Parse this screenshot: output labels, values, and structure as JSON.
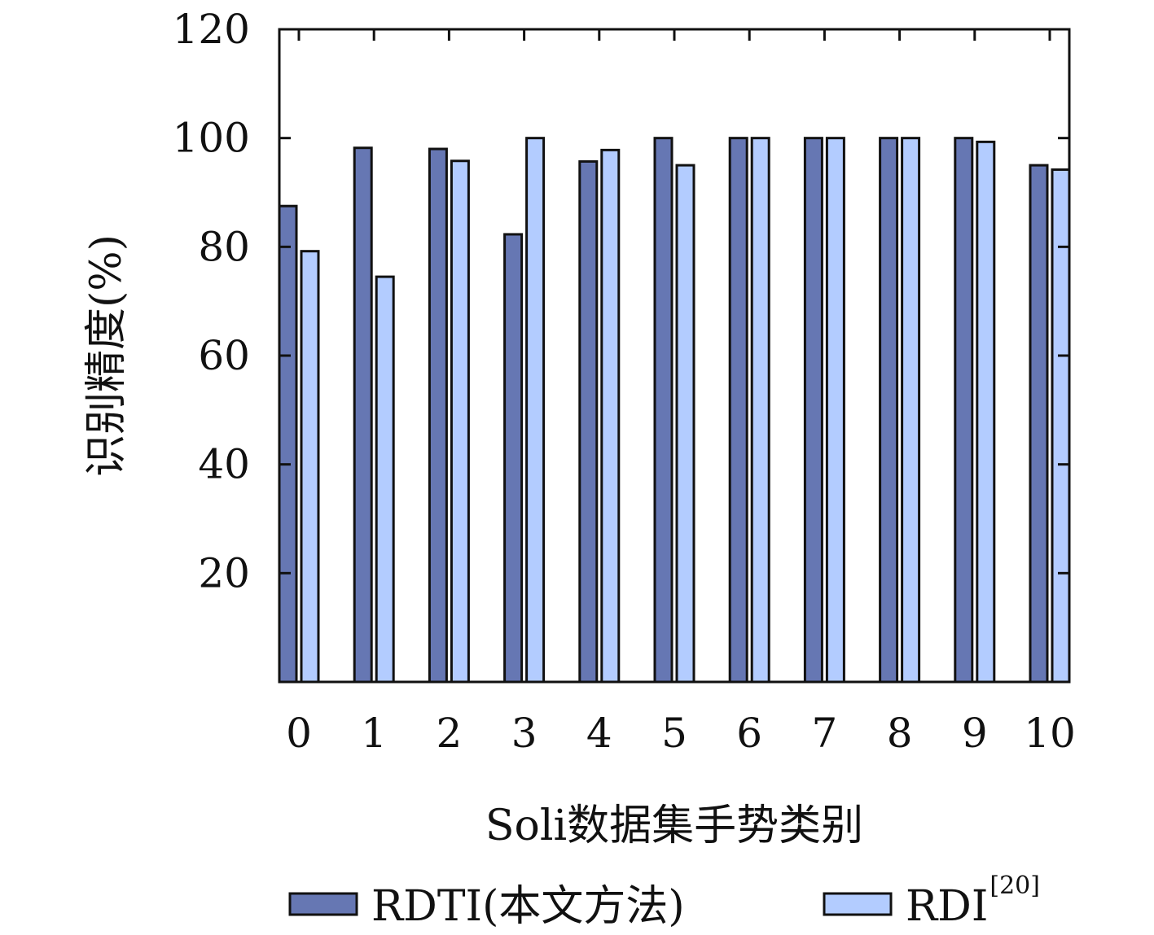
{
  "chart_data": {
    "type": "bar",
    "title": "",
    "xlabel": "Soli数据集手势类别",
    "ylabel": "识别精度(%)",
    "ylim": [
      0,
      120
    ],
    "yticks": [
      20,
      40,
      60,
      80,
      100,
      120
    ],
    "categories": [
      "0",
      "1",
      "2",
      "3",
      "4",
      "5",
      "6",
      "7",
      "8",
      "9",
      "10"
    ],
    "series": [
      {
        "name": "RDTI(本文方法)",
        "color": "#6677b3",
        "values": [
          87.5,
          98.2,
          98.0,
          82.3,
          95.7,
          100,
          100,
          100,
          100,
          100,
          95.0
        ]
      },
      {
        "name": "RDI",
        "superscript": "[20]",
        "color": "#b3ccff",
        "values": [
          79.2,
          74.5,
          95.8,
          100,
          97.8,
          95.0,
          100,
          100,
          100,
          99.3,
          94.2
        ]
      }
    ],
    "grid": false,
    "legend_position": "bottom"
  }
}
